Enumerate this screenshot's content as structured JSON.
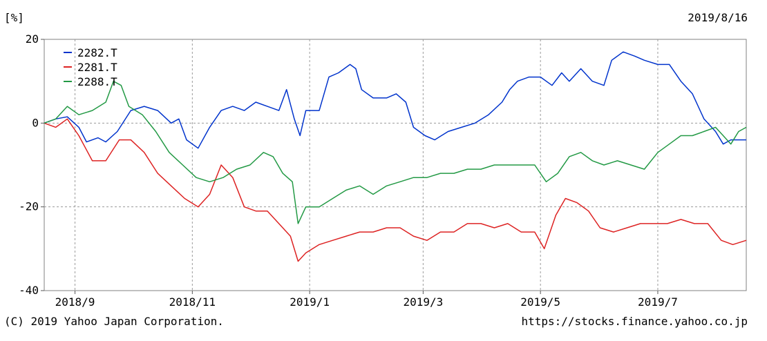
{
  "header": {
    "unit": "[%]",
    "date": "2019/8/16"
  },
  "footer": {
    "copyright": "(C) 2019 Yahoo Japan Corporation.",
    "url": "https://stocks.finance.yahoo.co.jp"
  },
  "chart_data": {
    "type": "line",
    "title": "",
    "xlabel": "",
    "ylabel": "[%]",
    "ylim": [
      -40,
      20
    ],
    "yticks": [
      20,
      0,
      -20,
      -40
    ],
    "xlim": [
      "2018-08-16",
      "2019-08-16"
    ],
    "xticks": [
      {
        "date": "2018-09-01",
        "label": "2018/9"
      },
      {
        "date": "2018-11-01",
        "label": "2018/11"
      },
      {
        "date": "2019-01-01",
        "label": "2019/1"
      },
      {
        "date": "2019-03-01",
        "label": "2019/3"
      },
      {
        "date": "2019-05-01",
        "label": "2019/5"
      },
      {
        "date": "2019-07-01",
        "label": "2019/7"
      }
    ],
    "grid": true,
    "legend": "top-left",
    "series": [
      {
        "name": "2282.T",
        "color": "#0033cc",
        "points": [
          [
            "2018-08-16",
            0
          ],
          [
            "2018-08-22",
            1
          ],
          [
            "2018-08-28",
            1.5
          ],
          [
            "2018-09-03",
            -1
          ],
          [
            "2018-09-07",
            -4.5
          ],
          [
            "2018-09-13",
            -3.5
          ],
          [
            "2018-09-17",
            -4.5
          ],
          [
            "2018-09-23",
            -2
          ],
          [
            "2018-09-30",
            3
          ],
          [
            "2018-10-07",
            4
          ],
          [
            "2018-10-14",
            3
          ],
          [
            "2018-10-21",
            0
          ],
          [
            "2018-10-25",
            1
          ],
          [
            "2018-10-29",
            -4
          ],
          [
            "2018-11-04",
            -6
          ],
          [
            "2018-11-10",
            -1
          ],
          [
            "2018-11-16",
            3
          ],
          [
            "2018-11-22",
            4
          ],
          [
            "2018-11-28",
            3
          ],
          [
            "2018-12-04",
            5
          ],
          [
            "2018-12-10",
            4
          ],
          [
            "2018-12-16",
            3
          ],
          [
            "2018-12-20",
            8
          ],
          [
            "2018-12-24",
            1
          ],
          [
            "2018-12-27",
            -3
          ],
          [
            "2018-12-30",
            3
          ],
          [
            "2019-01-06",
            3
          ],
          [
            "2019-01-11",
            11
          ],
          [
            "2019-01-16",
            12
          ],
          [
            "2019-01-22",
            14
          ],
          [
            "2019-01-25",
            13
          ],
          [
            "2019-01-28",
            8
          ],
          [
            "2019-02-03",
            6
          ],
          [
            "2019-02-10",
            6
          ],
          [
            "2019-02-15",
            7
          ],
          [
            "2019-02-20",
            5
          ],
          [
            "2019-02-24",
            -1
          ],
          [
            "2019-03-02",
            -3
          ],
          [
            "2019-03-07",
            -4
          ],
          [
            "2019-03-14",
            -2
          ],
          [
            "2019-03-21",
            -1
          ],
          [
            "2019-03-28",
            0
          ],
          [
            "2019-04-04",
            2
          ],
          [
            "2019-04-11",
            5
          ],
          [
            "2019-04-15",
            8
          ],
          [
            "2019-04-19",
            10
          ],
          [
            "2019-04-25",
            11
          ],
          [
            "2019-05-01",
            11
          ],
          [
            "2019-05-07",
            9
          ],
          [
            "2019-05-12",
            12
          ],
          [
            "2019-05-16",
            10
          ],
          [
            "2019-05-22",
            13
          ],
          [
            "2019-05-28",
            10
          ],
          [
            "2019-06-03",
            9
          ],
          [
            "2019-06-07",
            15
          ],
          [
            "2019-06-13",
            17
          ],
          [
            "2019-06-19",
            16
          ],
          [
            "2019-06-24",
            15
          ],
          [
            "2019-07-01",
            14
          ],
          [
            "2019-07-07",
            14
          ],
          [
            "2019-07-13",
            10
          ],
          [
            "2019-07-19",
            7
          ],
          [
            "2019-07-25",
            1
          ],
          [
            "2019-07-31",
            -2
          ],
          [
            "2019-08-04",
            -5
          ],
          [
            "2019-08-08",
            -4
          ],
          [
            "2019-08-16",
            -4
          ]
        ]
      },
      {
        "name": "2281.T",
        "color": "#dd2222",
        "points": [
          [
            "2018-08-16",
            0
          ],
          [
            "2018-08-22",
            -1
          ],
          [
            "2018-08-28",
            1
          ],
          [
            "2018-09-03",
            -3
          ],
          [
            "2018-09-10",
            -9
          ],
          [
            "2018-09-17",
            -9
          ],
          [
            "2018-09-24",
            -4
          ],
          [
            "2018-09-30",
            -4
          ],
          [
            "2018-10-07",
            -7
          ],
          [
            "2018-10-14",
            -12
          ],
          [
            "2018-10-21",
            -15
          ],
          [
            "2018-10-28",
            -18
          ],
          [
            "2018-11-04",
            -20
          ],
          [
            "2018-11-10",
            -17
          ],
          [
            "2018-11-16",
            -10
          ],
          [
            "2018-11-22",
            -13
          ],
          [
            "2018-11-28",
            -20
          ],
          [
            "2018-12-04",
            -21
          ],
          [
            "2018-12-10",
            -21
          ],
          [
            "2018-12-16",
            -24
          ],
          [
            "2018-12-22",
            -27
          ],
          [
            "2018-12-26",
            -33
          ],
          [
            "2018-12-30",
            -31
          ],
          [
            "2019-01-06",
            -29
          ],
          [
            "2019-01-13",
            -28
          ],
          [
            "2019-01-20",
            -27
          ],
          [
            "2019-01-27",
            -26
          ],
          [
            "2019-02-03",
            -26
          ],
          [
            "2019-02-10",
            -25
          ],
          [
            "2019-02-17",
            -25
          ],
          [
            "2019-02-24",
            -27
          ],
          [
            "2019-03-03",
            -28
          ],
          [
            "2019-03-10",
            -26
          ],
          [
            "2019-03-17",
            -26
          ],
          [
            "2019-03-24",
            -24
          ],
          [
            "2019-03-31",
            -24
          ],
          [
            "2019-04-07",
            -25
          ],
          [
            "2019-04-14",
            -24
          ],
          [
            "2019-04-21",
            -26
          ],
          [
            "2019-04-28",
            -26
          ],
          [
            "2019-05-03",
            -30
          ],
          [
            "2019-05-09",
            -22
          ],
          [
            "2019-05-14",
            -18
          ],
          [
            "2019-05-20",
            -19
          ],
          [
            "2019-05-26",
            -21
          ],
          [
            "2019-06-01",
            -25
          ],
          [
            "2019-06-08",
            -26
          ],
          [
            "2019-06-15",
            -25
          ],
          [
            "2019-06-22",
            -24
          ],
          [
            "2019-06-29",
            -24
          ],
          [
            "2019-07-06",
            -24
          ],
          [
            "2019-07-13",
            -23
          ],
          [
            "2019-07-20",
            -24
          ],
          [
            "2019-07-27",
            -24
          ],
          [
            "2019-08-03",
            -28
          ],
          [
            "2019-08-09",
            -29
          ],
          [
            "2019-08-16",
            -28
          ]
        ]
      },
      {
        "name": "2288.T",
        "color": "#229944",
        "points": [
          [
            "2018-08-16",
            0
          ],
          [
            "2018-08-22",
            1
          ],
          [
            "2018-08-28",
            4
          ],
          [
            "2018-09-03",
            2
          ],
          [
            "2018-09-10",
            3
          ],
          [
            "2018-09-17",
            5
          ],
          [
            "2018-09-21",
            10
          ],
          [
            "2018-09-25",
            9
          ],
          [
            "2018-09-29",
            4
          ],
          [
            "2018-10-06",
            2
          ],
          [
            "2018-10-13",
            -2
          ],
          [
            "2018-10-20",
            -7
          ],
          [
            "2018-10-27",
            -10
          ],
          [
            "2018-11-03",
            -13
          ],
          [
            "2018-11-10",
            -14
          ],
          [
            "2018-11-17",
            -13
          ],
          [
            "2018-11-24",
            -11
          ],
          [
            "2018-12-01",
            -10
          ],
          [
            "2018-12-08",
            -7
          ],
          [
            "2018-12-13",
            -8
          ],
          [
            "2018-12-18",
            -12
          ],
          [
            "2018-12-23",
            -14
          ],
          [
            "2018-12-26",
            -24
          ],
          [
            "2018-12-30",
            -20
          ],
          [
            "2019-01-06",
            -20
          ],
          [
            "2019-01-13",
            -18
          ],
          [
            "2019-01-20",
            -16
          ],
          [
            "2019-01-27",
            -15
          ],
          [
            "2019-02-03",
            -17
          ],
          [
            "2019-02-10",
            -15
          ],
          [
            "2019-02-17",
            -14
          ],
          [
            "2019-02-24",
            -13
          ],
          [
            "2019-03-03",
            -13
          ],
          [
            "2019-03-10",
            -12
          ],
          [
            "2019-03-17",
            -12
          ],
          [
            "2019-03-24",
            -11
          ],
          [
            "2019-03-31",
            -11
          ],
          [
            "2019-04-07",
            -10
          ],
          [
            "2019-04-14",
            -10
          ],
          [
            "2019-04-21",
            -10
          ],
          [
            "2019-04-28",
            -10
          ],
          [
            "2019-05-04",
            -14
          ],
          [
            "2019-05-10",
            -12
          ],
          [
            "2019-05-16",
            -8
          ],
          [
            "2019-05-22",
            -7
          ],
          [
            "2019-05-28",
            -9
          ],
          [
            "2019-06-03",
            -10
          ],
          [
            "2019-06-10",
            -9
          ],
          [
            "2019-06-17",
            -10
          ],
          [
            "2019-06-24",
            -11
          ],
          [
            "2019-07-01",
            -7
          ],
          [
            "2019-07-07",
            -5
          ],
          [
            "2019-07-13",
            -3
          ],
          [
            "2019-07-19",
            -3
          ],
          [
            "2019-07-25",
            -2
          ],
          [
            "2019-07-31",
            -1
          ],
          [
            "2019-08-04",
            -3
          ],
          [
            "2019-08-08",
            -5
          ],
          [
            "2019-08-12",
            -2
          ],
          [
            "2019-08-16",
            -1
          ]
        ]
      }
    ]
  }
}
